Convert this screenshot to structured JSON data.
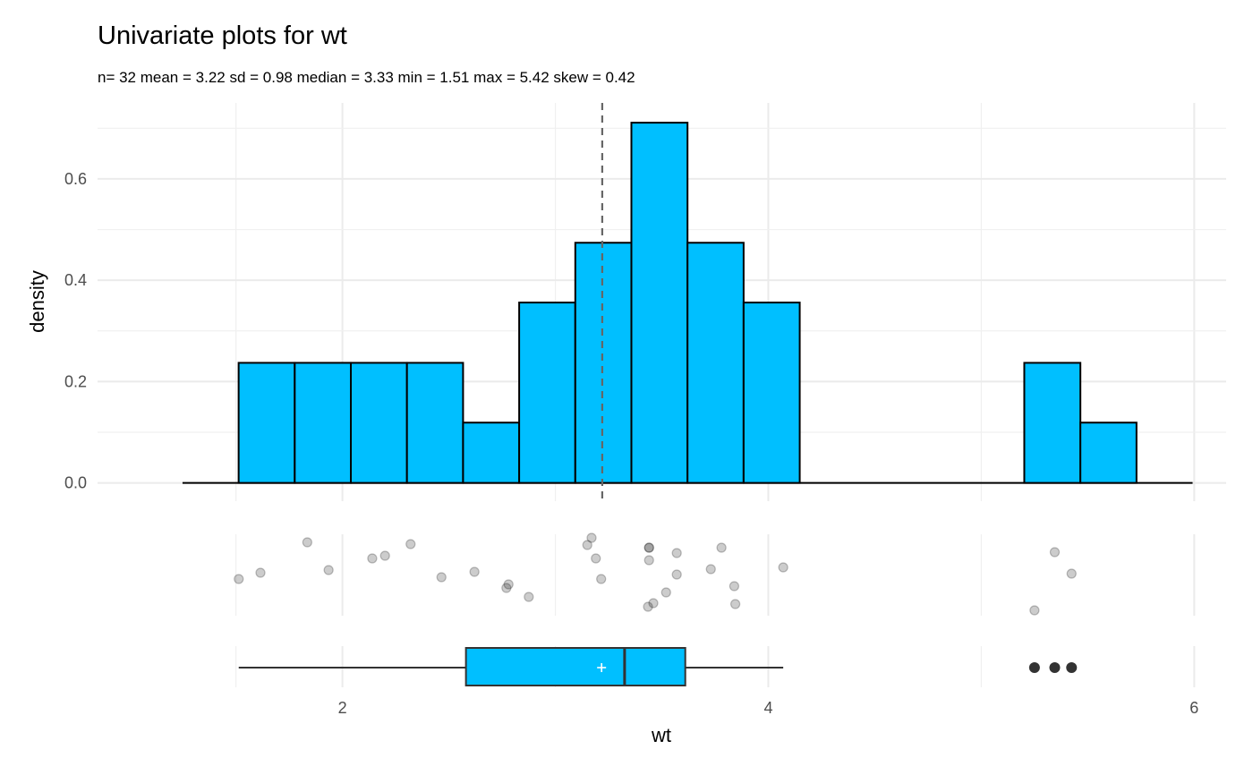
{
  "chart_data": {
    "type": "histogram",
    "title": "Univariate plots for wt",
    "subtitle": "n= 32  mean = 3.22  sd = 0.98  median = 3.33  min = 1.51  max = 5.42  skew = 0.42",
    "xlabel": "wt",
    "ylabel": "density",
    "xlim": [
      0.85,
      6.15
    ],
    "ylim": [
      -0.036,
      0.75
    ],
    "x_ticks": [
      2,
      4,
      6
    ],
    "y_ticks": [
      0.0,
      0.2,
      0.4,
      0.6
    ],
    "y_tick_labels": [
      "0.0",
      "0.2",
      "0.4",
      "0.6"
    ],
    "grid": true,
    "histogram": {
      "bin_width": 0.2635,
      "bins": [
        {
          "x0": 1.5125,
          "x1": 1.776,
          "density": 0.237
        },
        {
          "x0": 1.776,
          "x1": 2.0395,
          "density": 0.237
        },
        {
          "x0": 2.0395,
          "x1": 2.303,
          "density": 0.237
        },
        {
          "x0": 2.303,
          "x1": 2.5665,
          "density": 0.237
        },
        {
          "x0": 2.5665,
          "x1": 2.83,
          "density": 0.119
        },
        {
          "x0": 2.83,
          "x1": 3.0935,
          "density": 0.356
        },
        {
          "x0": 3.0935,
          "x1": 3.357,
          "density": 0.474
        },
        {
          "x0": 3.357,
          "x1": 3.6205,
          "density": 0.711
        },
        {
          "x0": 3.6205,
          "x1": 3.884,
          "density": 0.474
        },
        {
          "x0": 3.884,
          "x1": 4.1475,
          "density": 0.356
        },
        {
          "x0": 5.202,
          "x1": 5.4655,
          "density": 0.237
        },
        {
          "x0": 5.4655,
          "x1": 5.729,
          "density": 0.119
        }
      ],
      "baseline_range": [
        1.249,
        5.9925
      ],
      "fill": "#00BFFF",
      "mean_line": 3.22
    },
    "jitter_points": [
      1.513,
      1.615,
      1.835,
      1.935,
      2.14,
      2.2,
      2.32,
      2.465,
      2.62,
      2.77,
      2.78,
      2.875,
      3.15,
      3.17,
      3.19,
      3.215,
      3.435,
      3.44,
      3.44,
      3.44,
      3.46,
      3.52,
      3.57,
      3.57,
      3.73,
      3.78,
      3.84,
      3.845,
      4.07,
      5.25,
      5.345,
      5.424
    ],
    "boxplot": {
      "whisker_low": 1.513,
      "q1": 2.58,
      "median": 3.325,
      "q3": 3.61,
      "whisker_high": 4.07,
      "mean": 3.217,
      "outliers": [
        5.25,
        5.345,
        5.424
      ]
    }
  }
}
